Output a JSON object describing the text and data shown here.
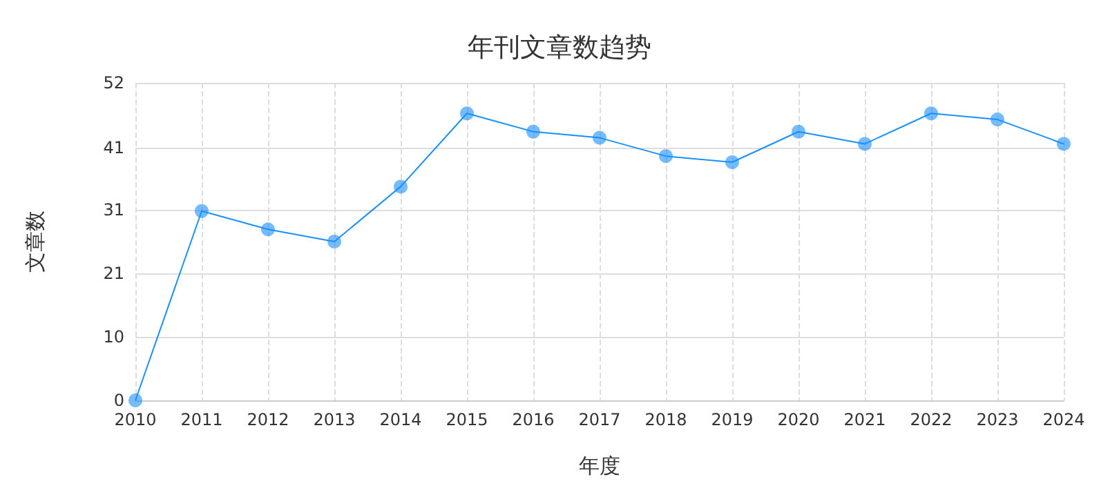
{
  "chart_data": {
    "type": "line",
    "title": "年刊文章数趋势",
    "xlabel": "年度",
    "ylabel": "文章数",
    "categories": [
      "2010",
      "2011",
      "2012",
      "2013",
      "2014",
      "2015",
      "2016",
      "2017",
      "2018",
      "2019",
      "2020",
      "2021",
      "2022",
      "2023",
      "2024"
    ],
    "series": [
      {
        "color": "#1890ff",
        "values": [
          0,
          31,
          28,
          26,
          35,
          47,
          44,
          43,
          40,
          39,
          44,
          42,
          47,
          46,
          42
        ]
      }
    ],
    "ylim": [
      0,
      52
    ],
    "yticks": [
      0,
      {
        "value": 10.4,
        "label": "10"
      },
      {
        "value": 20.8,
        "label": "21"
      },
      {
        "value": 31.2,
        "label": "31"
      },
      {
        "value": 41.4,
        "label": "41"
      },
      52
    ],
    "grid": true,
    "marker": "circle",
    "line_style": "solid"
  }
}
